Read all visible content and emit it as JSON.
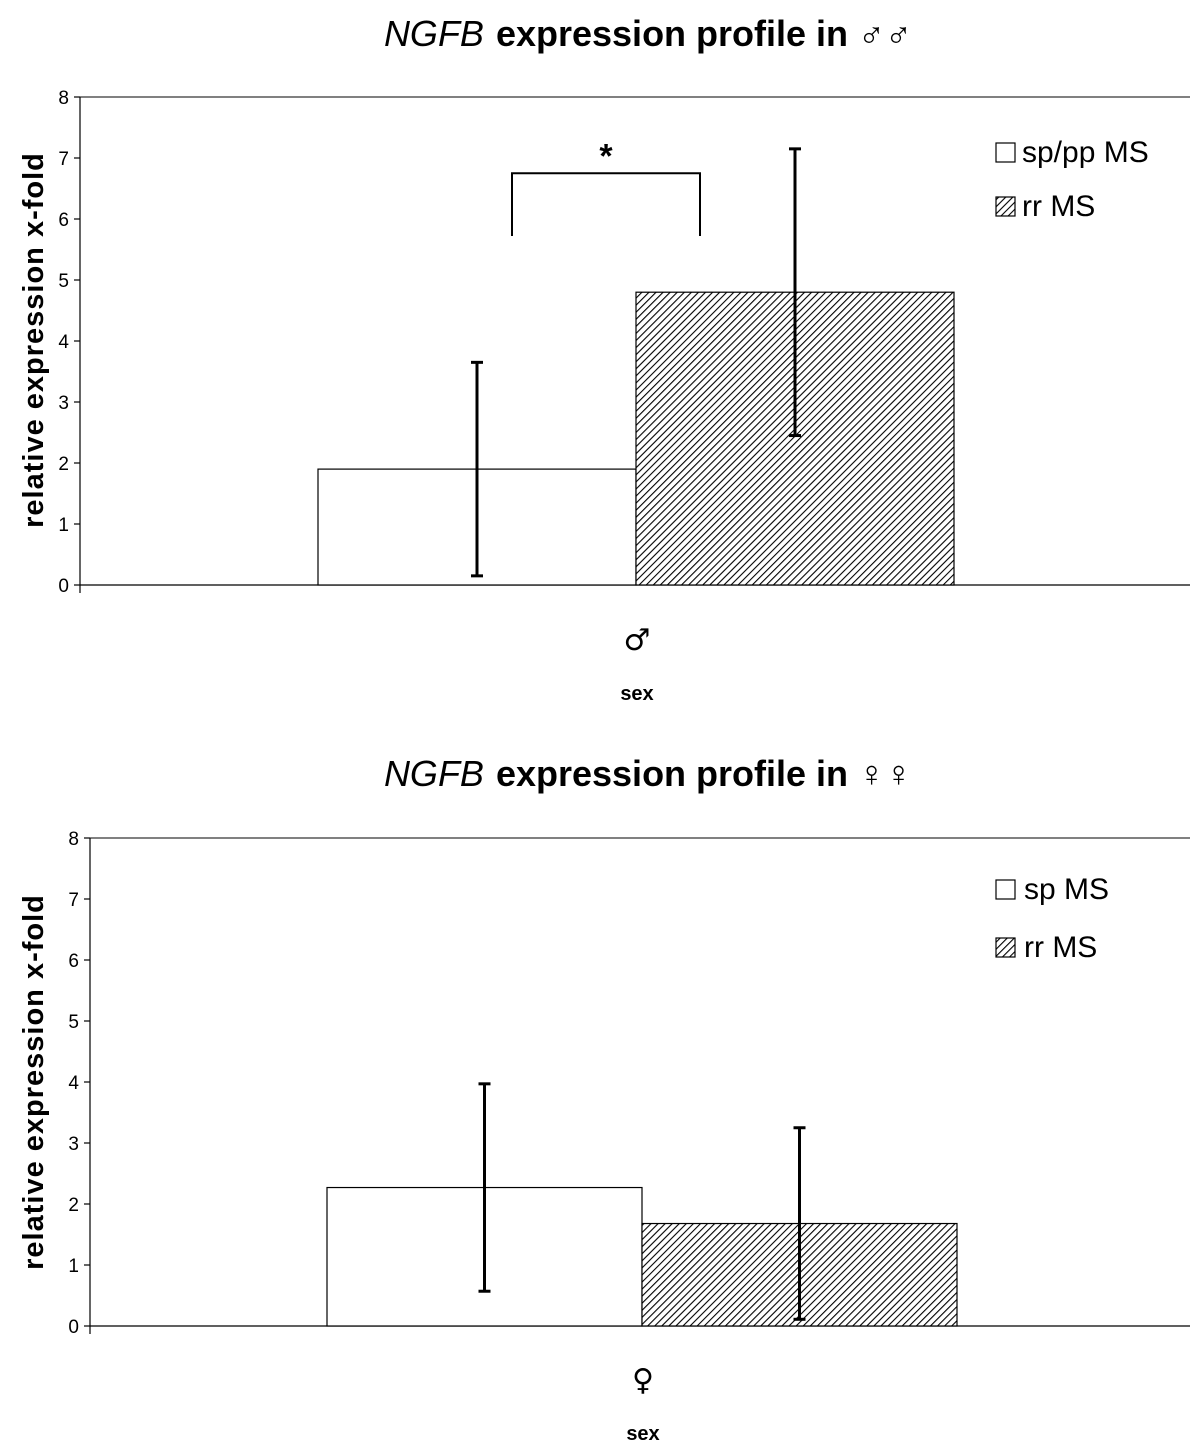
{
  "chart_data": [
    {
      "type": "bar",
      "title": "NGFB expression profile in ♂♂",
      "title_gene": "NGFB",
      "title_rest": "expression profile in ♂♂",
      "xlabel": "sex",
      "ylabel": "relative expression x-fold",
      "ylim": [
        0,
        8
      ],
      "yticks": [
        "0",
        "1",
        "2",
        "3",
        "4",
        "5",
        "6",
        "7",
        "8"
      ],
      "categories": [
        "♂"
      ],
      "grid": false,
      "legend_position": "top-right",
      "series": [
        {
          "name": "sp/pp MS",
          "values": [
            1.9
          ],
          "error": [
            1.75
          ],
          "fill": "#ffffff",
          "pattern": "none"
        },
        {
          "name": "rr MS",
          "values": [
            4.8
          ],
          "error": [
            2.35
          ],
          "fill": "#ffffff",
          "pattern": "diagonal-hatch"
        }
      ],
      "annotation": {
        "label": "*",
        "between": [
          "sp/pp MS",
          "rr MS"
        ],
        "y": 6.75
      }
    },
    {
      "type": "bar",
      "title": "NGFB expression profile in ♀♀",
      "title_gene": "NGFB",
      "title_rest": "expression profile in ♀♀",
      "xlabel": "sex",
      "ylabel": "relative expression x-fold",
      "ylim": [
        0,
        8
      ],
      "yticks": [
        "0",
        "1",
        "2",
        "3",
        "4",
        "5",
        "6",
        "7",
        "8"
      ],
      "categories": [
        "♀"
      ],
      "grid": false,
      "legend_position": "top-right",
      "series": [
        {
          "name": "sp MS",
          "values": [
            2.27
          ],
          "error": [
            1.7
          ],
          "fill": "#ffffff",
          "pattern": "none"
        },
        {
          "name": "rr MS",
          "values": [
            1.68
          ],
          "error": [
            1.57
          ],
          "fill": "#ffffff",
          "pattern": "diagonal-hatch"
        }
      ]
    }
  ]
}
